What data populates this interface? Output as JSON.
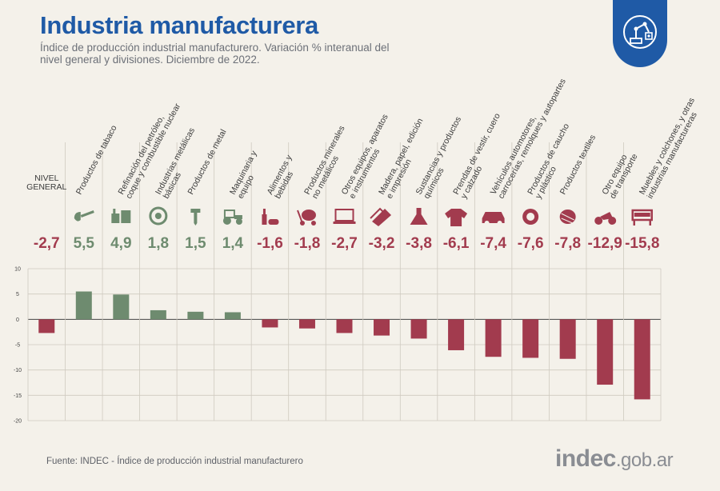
{
  "title": "Industria manufacturera",
  "subtitle": "Índice de producción industrial manufacturero. Variación % interanual del nivel general y divisiones. Diciembre de 2022.",
  "source": "Fuente: INDEC - Índice de producción industrial manufacturero",
  "logo": {
    "part1": "indec",
    "part2": ".gob.ar"
  },
  "colors": {
    "positive": "#6e8b6f",
    "negative": "#a23b4e",
    "title": "#1f5aa6",
    "grid": "#cfcac0"
  },
  "chart_data": {
    "type": "bar",
    "title": "Índice de producción industrial manufacturero. Variación % interanual",
    "categories": [
      {
        "lines": [
          "NIVEL",
          "GENERAL"
        ],
        "icon": "none",
        "horizontal": true
      },
      {
        "lines": [
          "Productos de tabaco"
        ],
        "icon": "pipe-icon"
      },
      {
        "lines": [
          "Refinación del petróleo,",
          "coque y combustible nuclear"
        ],
        "icon": "refinery-icon"
      },
      {
        "lines": [
          "Industrias metálicas",
          "básicas"
        ],
        "icon": "coil-icon"
      },
      {
        "lines": [
          "Productos de metal"
        ],
        "icon": "screw-icon"
      },
      {
        "lines": [
          "Maquinaria y",
          "equipo"
        ],
        "icon": "tractor-icon"
      },
      {
        "lines": [
          "Alimentos y",
          "bebidas"
        ],
        "icon": "bottle-icon"
      },
      {
        "lines": [
          "Productos minerales",
          "no metálicos"
        ],
        "icon": "cement-mixer-icon"
      },
      {
        "lines": [
          "Otros equipos, aparatos",
          "e instrumentos"
        ],
        "icon": "laptop-icon"
      },
      {
        "lines": [
          "Madera, papel, edición",
          "e impresión"
        ],
        "icon": "paper-icon"
      },
      {
        "lines": [
          "Sustancias y productos",
          "químicos"
        ],
        "icon": "flask-icon"
      },
      {
        "lines": [
          "Prendas de vestir, cuero",
          "y calzado"
        ],
        "icon": "shirt-icon"
      },
      {
        "lines": [
          "Vehículos automotores,",
          "carrocerías, remolques y autopartes"
        ],
        "icon": "car-icon"
      },
      {
        "lines": [
          "Productos de caucho",
          "y plástico"
        ],
        "icon": "tire-icon"
      },
      {
        "lines": [
          "Productos textiles"
        ],
        "icon": "thread-icon"
      },
      {
        "lines": [
          "Otro equipo",
          "de transporte"
        ],
        "icon": "motorcycle-icon"
      },
      {
        "lines": [
          "Muebles y colchones, y otras",
          "industrias manufactureras"
        ],
        "icon": "furniture-icon"
      }
    ],
    "values": [
      -2.7,
      5.5,
      4.9,
      1.8,
      1.5,
      1.4,
      -1.6,
      -1.8,
      -2.7,
      -3.2,
      -3.8,
      -6.1,
      -7.4,
      -7.6,
      -7.8,
      -12.9,
      -15.8
    ],
    "value_labels": [
      "-2,7",
      "5,5",
      "4,9",
      "1,8",
      "1,5",
      "1,4",
      "-1,6",
      "-1,8",
      "-2,7",
      "-3,2",
      "-3,8",
      "-6,1",
      "-7,4",
      "-7,6",
      "-7,8",
      "-12,9",
      "-15,8"
    ],
    "y_ticks": [
      "10",
      "5",
      "0",
      "-5",
      "-10",
      "-15",
      "-20"
    ],
    "ylim": [
      -20,
      10
    ],
    "grid": true
  }
}
